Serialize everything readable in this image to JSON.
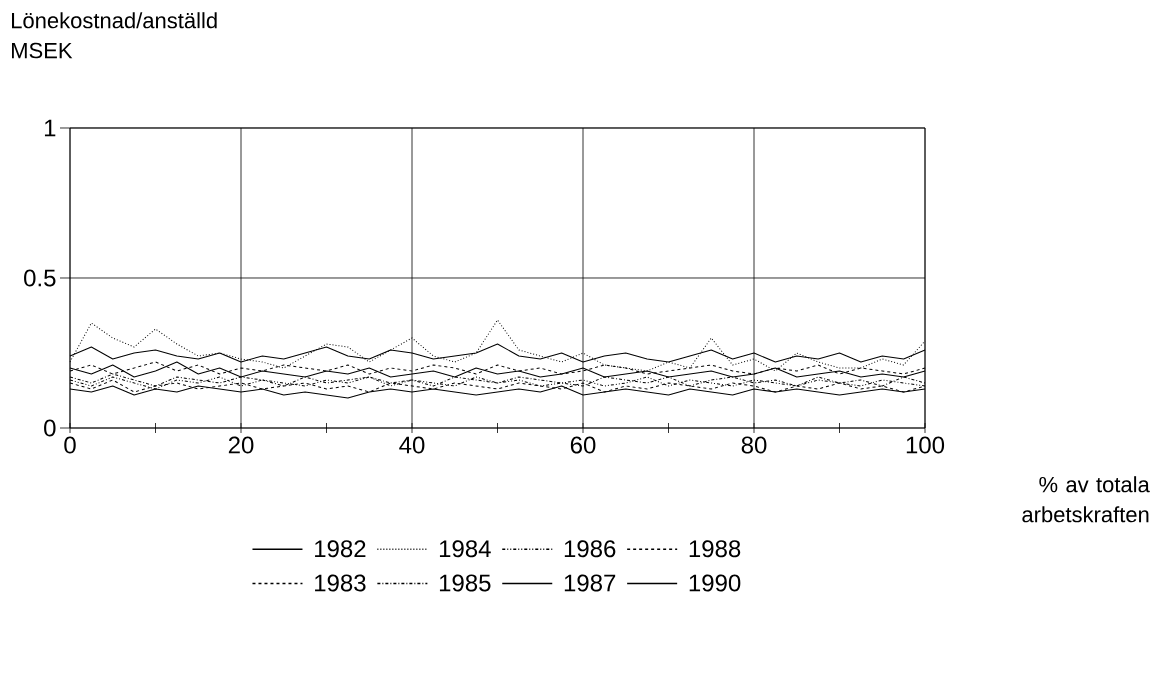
{
  "chart_data": {
    "type": "line",
    "ylabel": "Lönekostnad/anställd MSEK",
    "xlabel": "% av totala arbetskraften",
    "x": [
      0,
      2.5,
      5,
      7.5,
      10,
      12.5,
      15,
      17.5,
      20,
      22.5,
      25,
      27.5,
      30,
      32.5,
      35,
      37.5,
      40,
      42.5,
      45,
      47.5,
      50,
      52.5,
      55,
      57.5,
      60,
      62.5,
      65,
      67.5,
      70,
      72.5,
      75,
      77.5,
      80,
      82.5,
      85,
      87.5,
      90,
      92.5,
      95,
      97.5,
      100
    ],
    "series": [
      {
        "name": "1982",
        "color": "#000000",
        "line_style": "solid",
        "values": [
          0.13,
          0.12,
          0.14,
          0.11,
          0.13,
          0.12,
          0.14,
          0.13,
          0.12,
          0.13,
          0.11,
          0.12,
          0.11,
          0.1,
          0.12,
          0.13,
          0.12,
          0.13,
          0.12,
          0.11,
          0.12,
          0.13,
          0.12,
          0.14,
          0.11,
          0.12,
          0.13,
          0.12,
          0.11,
          0.13,
          0.12,
          0.11,
          0.13,
          0.12,
          0.13,
          0.12,
          0.11,
          0.12,
          0.13,
          0.12,
          0.13
        ]
      },
      {
        "name": "1983",
        "color": "#000000",
        "line_style": "dashed",
        "values": [
          0.15,
          0.13,
          0.16,
          0.12,
          0.14,
          0.15,
          0.13,
          0.14,
          0.15,
          0.13,
          0.14,
          0.15,
          0.13,
          0.14,
          0.12,
          0.15,
          0.14,
          0.13,
          0.15,
          0.14,
          0.13,
          0.15,
          0.14,
          0.13,
          0.15,
          0.12,
          0.14,
          0.13,
          0.15,
          0.14,
          0.13,
          0.15,
          0.14,
          0.12,
          0.14,
          0.13,
          0.15,
          0.13,
          0.14,
          0.12,
          0.14
        ]
      },
      {
        "name": "1984",
        "color": "#000000",
        "line_style": "dotted",
        "values": [
          0.22,
          0.35,
          0.3,
          0.27,
          0.33,
          0.28,
          0.24,
          0.25,
          0.23,
          0.22,
          0.2,
          0.24,
          0.28,
          0.27,
          0.22,
          0.26,
          0.3,
          0.24,
          0.22,
          0.25,
          0.36,
          0.26,
          0.24,
          0.22,
          0.25,
          0.21,
          0.2,
          0.19,
          0.22,
          0.2,
          0.3,
          0.21,
          0.23,
          0.19,
          0.25,
          0.22,
          0.2,
          0.2,
          0.23,
          0.21,
          0.29
        ]
      },
      {
        "name": "1985",
        "color": "#000000",
        "line_style": "dashdot",
        "values": [
          0.17,
          0.15,
          0.18,
          0.16,
          0.14,
          0.17,
          0.16,
          0.15,
          0.17,
          0.16,
          0.14,
          0.17,
          0.15,
          0.16,
          0.17,
          0.15,
          0.16,
          0.14,
          0.17,
          0.16,
          0.15,
          0.17,
          0.16,
          0.15,
          0.14,
          0.17,
          0.16,
          0.15,
          0.17,
          0.14,
          0.16,
          0.17,
          0.15,
          0.16,
          0.14,
          0.17,
          0.15,
          0.16,
          0.14,
          0.17,
          0.15
        ]
      },
      {
        "name": "1986",
        "color": "#000000",
        "line_style": "dashdotdot",
        "values": [
          0.16,
          0.14,
          0.17,
          0.15,
          0.13,
          0.16,
          0.15,
          0.17,
          0.14,
          0.16,
          0.15,
          0.14,
          0.16,
          0.15,
          0.17,
          0.14,
          0.16,
          0.15,
          0.14,
          0.17,
          0.15,
          0.16,
          0.14,
          0.15,
          0.16,
          0.14,
          0.15,
          0.17,
          0.14,
          0.16,
          0.15,
          0.14,
          0.16,
          0.15,
          0.14,
          0.16,
          0.15,
          0.14,
          0.16,
          0.15,
          0.14
        ]
      },
      {
        "name": "1987",
        "color": "#000000",
        "line_style": "solid",
        "values": [
          0.2,
          0.18,
          0.21,
          0.17,
          0.19,
          0.22,
          0.18,
          0.2,
          0.17,
          0.19,
          0.18,
          0.17,
          0.19,
          0.18,
          0.2,
          0.17,
          0.18,
          0.19,
          0.17,
          0.2,
          0.18,
          0.19,
          0.17,
          0.18,
          0.2,
          0.17,
          0.18,
          0.19,
          0.17,
          0.18,
          0.19,
          0.17,
          0.18,
          0.2,
          0.17,
          0.18,
          0.19,
          0.17,
          0.18,
          0.17,
          0.19
        ]
      },
      {
        "name": "1988",
        "color": "#000000",
        "line_style": "dashed",
        "values": [
          0.19,
          0.21,
          0.18,
          0.2,
          0.22,
          0.19,
          0.21,
          0.18,
          0.2,
          0.19,
          0.21,
          0.2,
          0.19,
          0.21,
          0.18,
          0.2,
          0.19,
          0.21,
          0.2,
          0.18,
          0.21,
          0.19,
          0.2,
          0.18,
          0.19,
          0.21,
          0.2,
          0.18,
          0.19,
          0.2,
          0.21,
          0.19,
          0.18,
          0.2,
          0.19,
          0.21,
          0.18,
          0.2,
          0.19,
          0.18,
          0.2
        ]
      },
      {
        "name": "1990",
        "color": "#000000",
        "line_style": "solid",
        "values": [
          0.24,
          0.27,
          0.23,
          0.25,
          0.26,
          0.24,
          0.23,
          0.25,
          0.22,
          0.24,
          0.23,
          0.25,
          0.27,
          0.24,
          0.23,
          0.26,
          0.25,
          0.23,
          0.24,
          0.25,
          0.28,
          0.24,
          0.23,
          0.25,
          0.22,
          0.24,
          0.25,
          0.23,
          0.22,
          0.24,
          0.26,
          0.23,
          0.25,
          0.22,
          0.24,
          0.23,
          0.25,
          0.22,
          0.24,
          0.23,
          0.26
        ]
      }
    ],
    "xlim": [
      0,
      100
    ],
    "ylim": [
      0,
      1
    ],
    "xticks": [
      0,
      {
        "value": 10,
        "label": null
      },
      20,
      {
        "value": 30,
        "label": null
      },
      40,
      {
        "value": 50,
        "label": null
      },
      60,
      {
        "value": 70,
        "label": null
      },
      80,
      {
        "value": 90,
        "label": null
      },
      100
    ],
    "yticks": [
      0,
      0.5,
      1
    ],
    "grid": true,
    "legend": "bottom"
  }
}
